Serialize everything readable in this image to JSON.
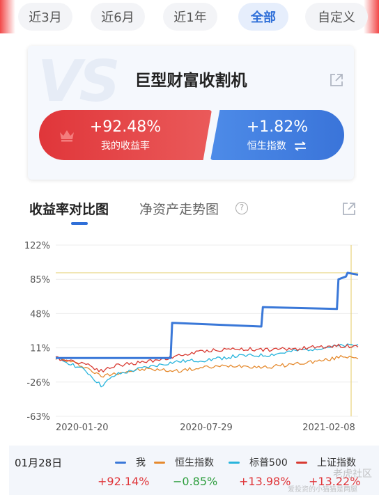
{
  "period_tabs": [
    {
      "label": "近3月",
      "active": false
    },
    {
      "label": "近6月",
      "active": false
    },
    {
      "label": "近1年",
      "active": false
    },
    {
      "label": "全部",
      "active": true
    },
    {
      "label": "自定义",
      "active": false
    }
  ],
  "vs_card": {
    "watermark": "VS",
    "title": "巨型财富收割机",
    "left": {
      "value": "+92.48%",
      "label": "我的收益率"
    },
    "right": {
      "value": "+1.82%",
      "label": "恒生指数"
    }
  },
  "chart_tabs": {
    "active": "收益率对比图",
    "inactive": "净资产走势图",
    "help": "?"
  },
  "chart_data": {
    "type": "line",
    "y_ticks": [
      "122%",
      "85%",
      "48%",
      "11%",
      "-26%",
      "-63%"
    ],
    "ylim": [
      -63,
      122
    ],
    "x_ticks": [
      "2020-01-20",
      "2020-07-29",
      "2021-02-08"
    ],
    "reference_line_value": 92,
    "series": [
      {
        "name": "我",
        "color": "#3a78d8",
        "points": [
          [
            0,
            0
          ],
          [
            0.38,
            0
          ],
          [
            0.385,
            38
          ],
          [
            0.68,
            34
          ],
          [
            0.685,
            55
          ],
          [
            0.93,
            53
          ],
          [
            0.935,
            85
          ],
          [
            0.96,
            88
          ],
          [
            0.965,
            92
          ],
          [
            1,
            90
          ]
        ]
      },
      {
        "name": "恒生指数",
        "color": "#e58a2e",
        "points": [
          [
            0,
            0
          ],
          [
            0.05,
            -4
          ],
          [
            0.1,
            -10
          ],
          [
            0.15,
            -20
          ],
          [
            0.2,
            -16
          ],
          [
            0.3,
            -12
          ],
          [
            0.4,
            -14
          ],
          [
            0.5,
            -10
          ],
          [
            0.6,
            -8
          ],
          [
            0.7,
            -10
          ],
          [
            0.8,
            -6
          ],
          [
            0.9,
            -2
          ],
          [
            0.95,
            2
          ],
          [
            1,
            1
          ]
        ]
      },
      {
        "name": "标普500",
        "color": "#28b4dc",
        "points": [
          [
            0,
            0
          ],
          [
            0.05,
            -6
          ],
          [
            0.1,
            -14
          ],
          [
            0.15,
            -30
          ],
          [
            0.2,
            -18
          ],
          [
            0.3,
            -10
          ],
          [
            0.4,
            -4
          ],
          [
            0.5,
            -2
          ],
          [
            0.6,
            2
          ],
          [
            0.7,
            3
          ],
          [
            0.8,
            8
          ],
          [
            0.9,
            12
          ],
          [
            1,
            14
          ]
        ]
      },
      {
        "name": "上证指数",
        "color": "#d83a32",
        "points": [
          [
            0,
            0
          ],
          [
            0.05,
            -3
          ],
          [
            0.1,
            -6
          ],
          [
            0.15,
            -14
          ],
          [
            0.2,
            -8
          ],
          [
            0.3,
            -4
          ],
          [
            0.4,
            2
          ],
          [
            0.5,
            8
          ],
          [
            0.6,
            10
          ],
          [
            0.7,
            9
          ],
          [
            0.8,
            10
          ],
          [
            0.9,
            13
          ],
          [
            1,
            13
          ]
        ]
      }
    ]
  },
  "legend": {
    "date": "01月28日",
    "items": [
      {
        "name": "我",
        "color": "#3a78d8",
        "value": "+92.14%",
        "value_color": "#e0363a"
      },
      {
        "name": "恒生指数",
        "color": "#e58a2e",
        "value": "−0.85%",
        "value_color": "#2e9e3e"
      },
      {
        "name": "标普500",
        "color": "#28b4dc",
        "value": "+13.98%",
        "value_color": "#e0363a"
      },
      {
        "name": "上证指数",
        "color": "#d83a32",
        "value": "+13.22%",
        "value_color": "#e0363a"
      }
    ]
  },
  "watermarks": [
    "老虎社区",
    "爱投资的小猫猫是两腿"
  ]
}
